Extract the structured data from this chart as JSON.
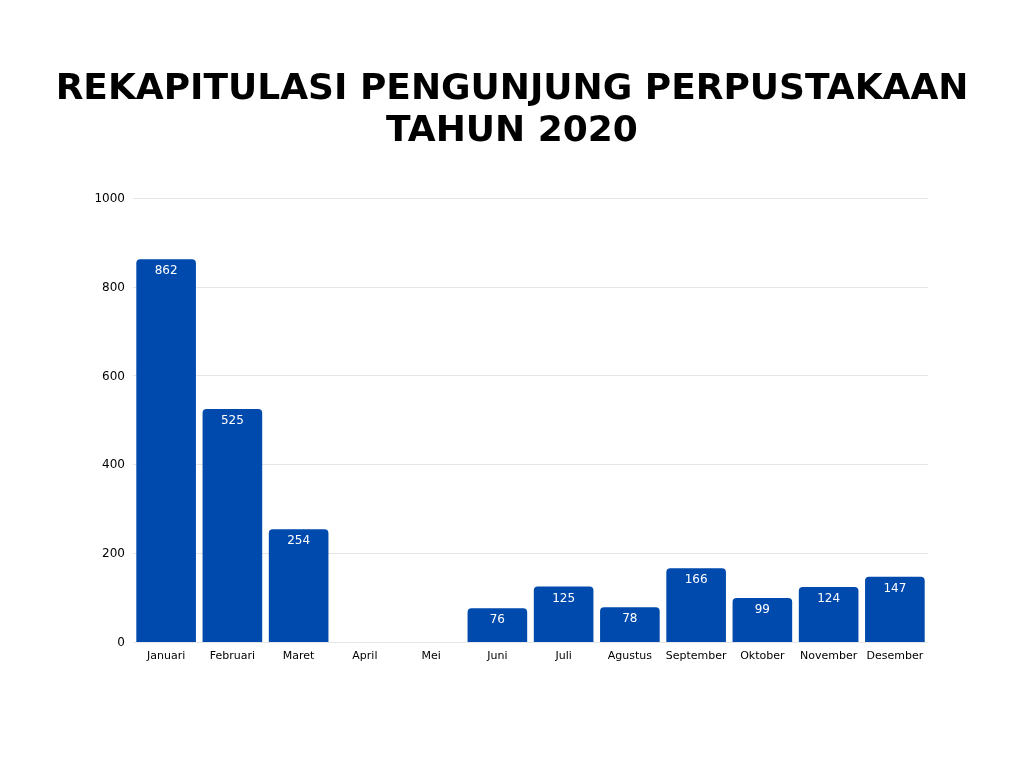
{
  "chart_data": {
    "type": "bar",
    "title": "REKAPITULASI PENGUNJUNG PERPUSTAKAAN\nTAHUN 2020",
    "categories": [
      "Januari",
      "Februari",
      "Maret",
      "April",
      "Mei",
      "Juni",
      "Juli",
      "Agustus",
      "September",
      "Oktober",
      "November",
      "Desember"
    ],
    "values": [
      862,
      525,
      254,
      0,
      0,
      76,
      125,
      78,
      166,
      99,
      124,
      147
    ],
    "value_labels": [
      "862",
      "525",
      "254",
      null,
      null,
      "76",
      "125",
      "78",
      "166",
      "99",
      "124",
      "147"
    ],
    "color": "#004aad",
    "ylim": [
      0,
      1000
    ],
    "yticks": [
      0,
      200,
      400,
      600,
      800,
      1000
    ],
    "grid": "y"
  }
}
